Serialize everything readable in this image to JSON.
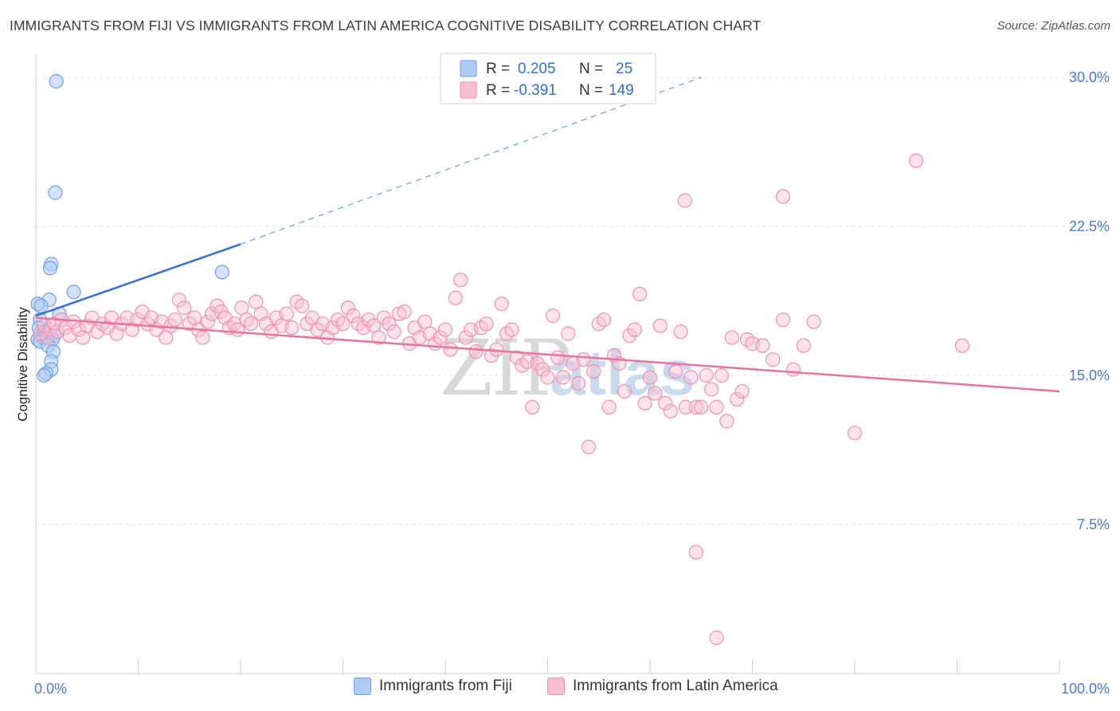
{
  "title": "IMMIGRANTS FROM FIJI VS IMMIGRANTS FROM LATIN AMERICA COGNITIVE DISABILITY CORRELATION CHART",
  "source": "Source: ZipAtlas.com",
  "watermark": "ZIPatlas",
  "colors": {
    "fiji_fill": "#aecbf3",
    "fiji_stroke": "#6f9fe0",
    "fiji_line": "#2f6fd6",
    "latam_fill": "#f8bfd2",
    "latam_stroke": "#ee8fb0",
    "latam_line": "#e8749d",
    "axis_label": "#4a7bd0",
    "grid": "#e2e2e2"
  },
  "legend": {
    "r_label": "R =",
    "n_label": "N =",
    "rows": [
      {
        "series": "fiji",
        "r": "0.205",
        "n": "25"
      },
      {
        "series": "latam",
        "r": "-0.391",
        "n": "149"
      }
    ]
  },
  "bottom_legend": [
    {
      "series": "fiji",
      "label": "Immigrants from Fiji"
    },
    {
      "series": "latam",
      "label": "Immigrants from Latin America"
    }
  ],
  "chart_data": {
    "type": "scatter",
    "title": "IMMIGRANTS FROM FIJI VS IMMIGRANTS FROM LATIN AMERICA COGNITIVE DISABILITY CORRELATION CHART",
    "xlabel": "",
    "ylabel": "Cognitive Disability",
    "xlim": [
      0,
      100
    ],
    "ylim": [
      0,
      31
    ],
    "x_tick_labels": [
      "0.0%",
      "100.0%"
    ],
    "y_ticks": [
      7.5,
      15.0,
      22.5,
      30.0
    ],
    "y_tick_labels": [
      "7.5%",
      "15.0%",
      "22.5%",
      "30.0%"
    ],
    "grid": true,
    "legend_position": "top-center",
    "series": [
      {
        "name": "Immigrants from Fiji",
        "key": "fiji",
        "r": 0.205,
        "n": 25,
        "trend": {
          "x0": 0,
          "y0": 18.0,
          "x1": 20,
          "y1": 21.6,
          "dashed_to_x": 65,
          "dashed_to_y": 30.0
        },
        "points": [
          [
            2.0,
            29.8
          ],
          [
            1.9,
            24.2
          ],
          [
            1.5,
            20.6
          ],
          [
            1.4,
            20.4
          ],
          [
            3.7,
            19.2
          ],
          [
            1.3,
            18.8
          ],
          [
            0.2,
            18.6
          ],
          [
            0.5,
            18.5
          ],
          [
            2.3,
            18.1
          ],
          [
            0.4,
            17.8
          ],
          [
            0.3,
            17.4
          ],
          [
            0.9,
            17.2
          ],
          [
            0.6,
            17.0
          ],
          [
            0.2,
            16.8
          ],
          [
            0.7,
            16.9
          ],
          [
            1.8,
            17.0
          ],
          [
            1.6,
            16.8
          ],
          [
            0.4,
            16.7
          ],
          [
            1.2,
            16.5
          ],
          [
            1.7,
            16.2
          ],
          [
            1.5,
            15.7
          ],
          [
            1.5,
            15.3
          ],
          [
            1.0,
            15.1
          ],
          [
            0.8,
            15.0
          ],
          [
            18.2,
            20.2
          ]
        ]
      },
      {
        "name": "Immigrants from Latin America",
        "key": "latam",
        "r": -0.391,
        "n": 149,
        "trend": {
          "x0": 0,
          "y0": 17.9,
          "x1": 100,
          "y1": 14.2
        },
        "points": [
          [
            0.4,
            17.1
          ],
          [
            0.8,
            17.5
          ],
          [
            1.1,
            16.9
          ],
          [
            1.4,
            17.3
          ],
          [
            1.8,
            17.6
          ],
          [
            2.1,
            17.2
          ],
          [
            2.5,
            17.8
          ],
          [
            2.9,
            17.4
          ],
          [
            3.3,
            17.0
          ],
          [
            3.7,
            17.7
          ],
          [
            4.2,
            17.3
          ],
          [
            4.6,
            16.9
          ],
          [
            5.0,
            17.5
          ],
          [
            5.5,
            17.9
          ],
          [
            6.0,
            17.2
          ],
          [
            6.5,
            17.6
          ],
          [
            7.0,
            17.4
          ],
          [
            7.4,
            17.9
          ],
          [
            7.9,
            17.1
          ],
          [
            8.4,
            17.6
          ],
          [
            8.9,
            17.9
          ],
          [
            9.4,
            17.3
          ],
          [
            9.9,
            17.8
          ],
          [
            10.4,
            18.2
          ],
          [
            10.9,
            17.6
          ],
          [
            11.3,
            17.9
          ],
          [
            11.8,
            17.3
          ],
          [
            12.3,
            17.7
          ],
          [
            12.7,
            16.9
          ],
          [
            13.2,
            17.5
          ],
          [
            13.6,
            17.8
          ],
          [
            14.0,
            18.8
          ],
          [
            14.5,
            18.4
          ],
          [
            15.0,
            17.6
          ],
          [
            15.5,
            17.9
          ],
          [
            15.9,
            17.3
          ],
          [
            16.3,
            16.9
          ],
          [
            16.8,
            17.7
          ],
          [
            17.2,
            18.1
          ],
          [
            17.7,
            18.5
          ],
          [
            18.1,
            18.2
          ],
          [
            18.5,
            17.9
          ],
          [
            18.9,
            17.4
          ],
          [
            19.4,
            17.6
          ],
          [
            19.7,
            17.3
          ],
          [
            20.1,
            18.4
          ],
          [
            20.6,
            17.8
          ],
          [
            21.0,
            17.6
          ],
          [
            21.5,
            18.7
          ],
          [
            22.0,
            18.1
          ],
          [
            22.5,
            17.6
          ],
          [
            23.0,
            17.2
          ],
          [
            23.5,
            17.9
          ],
          [
            24.0,
            17.5
          ],
          [
            24.5,
            18.1
          ],
          [
            25.0,
            17.4
          ],
          [
            25.5,
            18.7
          ],
          [
            26.0,
            18.5
          ],
          [
            26.5,
            17.6
          ],
          [
            27.0,
            17.9
          ],
          [
            27.5,
            17.3
          ],
          [
            28.0,
            17.6
          ],
          [
            28.5,
            16.9
          ],
          [
            29.0,
            17.4
          ],
          [
            29.5,
            17.8
          ],
          [
            30.0,
            17.6
          ],
          [
            30.5,
            18.4
          ],
          [
            31.0,
            18.0
          ],
          [
            31.5,
            17.6
          ],
          [
            32.0,
            17.4
          ],
          [
            32.5,
            17.8
          ],
          [
            33.0,
            17.5
          ],
          [
            33.5,
            16.9
          ],
          [
            34.0,
            17.9
          ],
          [
            34.5,
            17.6
          ],
          [
            35.0,
            17.2
          ],
          [
            35.5,
            18.1
          ],
          [
            36.0,
            18.2
          ],
          [
            36.5,
            16.6
          ],
          [
            37.0,
            17.4
          ],
          [
            37.5,
            16.9
          ],
          [
            38.0,
            17.7
          ],
          [
            38.5,
            17.1
          ],
          [
            39.0,
            16.6
          ],
          [
            39.5,
            16.9
          ],
          [
            40.0,
            17.3
          ],
          [
            40.5,
            16.3
          ],
          [
            41.0,
            18.9
          ],
          [
            41.5,
            19.8
          ],
          [
            42.0,
            16.9
          ],
          [
            42.5,
            17.3
          ],
          [
            43.0,
            16.2
          ],
          [
            43.5,
            17.4
          ],
          [
            44.0,
            17.6
          ],
          [
            44.5,
            16.0
          ],
          [
            45.0,
            16.3
          ],
          [
            45.5,
            18.6
          ],
          [
            46.0,
            17.1
          ],
          [
            46.5,
            17.3
          ],
          [
            47.0,
            15.9
          ],
          [
            47.5,
            15.5
          ],
          [
            48.0,
            15.7
          ],
          [
            48.5,
            13.4
          ],
          [
            49.0,
            15.6
          ],
          [
            49.5,
            15.3
          ],
          [
            50.0,
            14.9
          ],
          [
            50.5,
            18.0
          ],
          [
            51.0,
            15.9
          ],
          [
            51.5,
            14.9
          ],
          [
            52.0,
            17.1
          ],
          [
            52.5,
            15.6
          ],
          [
            53.0,
            14.6
          ],
          [
            53.5,
            15.8
          ],
          [
            54.0,
            11.4
          ],
          [
            54.5,
            15.2
          ],
          [
            55.0,
            17.6
          ],
          [
            55.5,
            17.8
          ],
          [
            56.0,
            13.4
          ],
          [
            56.5,
            16.0
          ],
          [
            57.0,
            15.6
          ],
          [
            57.5,
            14.2
          ],
          [
            58.0,
            17.0
          ],
          [
            58.5,
            17.3
          ],
          [
            59.0,
            19.1
          ],
          [
            59.5,
            13.6
          ],
          [
            60.0,
            14.9
          ],
          [
            60.5,
            14.1
          ],
          [
            61.0,
            17.5
          ],
          [
            61.5,
            13.6
          ],
          [
            62.0,
            13.2
          ],
          [
            62.5,
            15.2
          ],
          [
            63.0,
            17.2
          ],
          [
            63.5,
            13.4
          ],
          [
            64.0,
            14.9
          ],
          [
            64.5,
            13.4
          ],
          [
            65.0,
            13.4
          ],
          [
            65.5,
            15.0
          ],
          [
            66.0,
            14.3
          ],
          [
            66.5,
            13.4
          ],
          [
            67.0,
            15.0
          ],
          [
            67.5,
            12.7
          ],
          [
            68.0,
            16.9
          ],
          [
            68.5,
            13.8
          ],
          [
            69.0,
            14.2
          ],
          [
            69.5,
            16.8
          ],
          [
            70.0,
            16.6
          ],
          [
            71.0,
            16.5
          ],
          [
            72.0,
            15.8
          ],
          [
            73.0,
            17.8
          ],
          [
            74.0,
            15.3
          ],
          [
            75.0,
            16.5
          ],
          [
            76.0,
            17.7
          ],
          [
            80.0,
            12.1
          ],
          [
            90.5,
            16.5
          ],
          [
            86.0,
            25.8
          ],
          [
            73.0,
            24.0
          ],
          [
            64.5,
            6.1
          ],
          [
            66.5,
            1.8
          ],
          [
            63.4,
            23.8
          ]
        ]
      }
    ]
  }
}
